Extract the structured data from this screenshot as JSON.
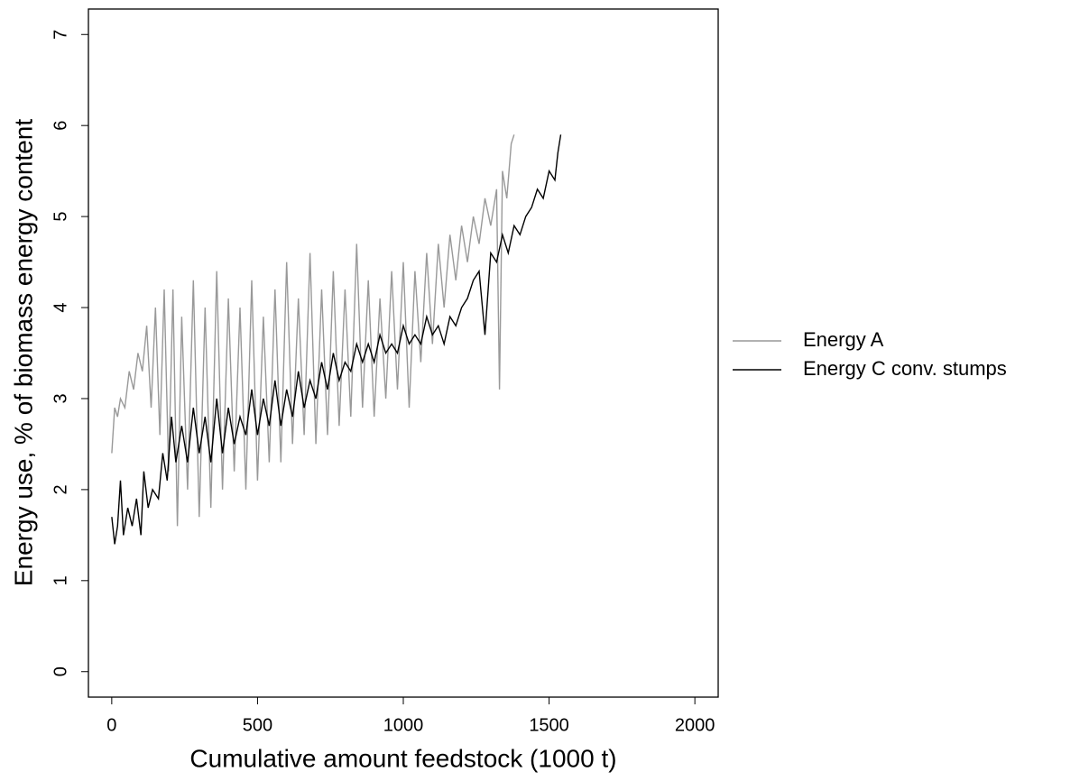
{
  "chart_data": {
    "type": "line",
    "x_label": "Cumulative amount feedstock (1000 t)",
    "y_label": "Energy use, % of biomass energy content",
    "xlim": [
      -80,
      2080
    ],
    "ylim": [
      -0.28,
      7.28
    ],
    "xticks": [
      0,
      500,
      1000,
      1500,
      2000
    ],
    "yticks": [
      0,
      1,
      2,
      3,
      4,
      5,
      6,
      7
    ],
    "legend": "right",
    "series": [
      {
        "name": "Energy A",
        "color": "#999999",
        "x": [
          0,
          10,
          20,
          30,
          45,
          60,
          75,
          90,
          105,
          120,
          135,
          150,
          165,
          180,
          195,
          210,
          225,
          240,
          260,
          280,
          300,
          320,
          340,
          360,
          380,
          400,
          420,
          440,
          460,
          480,
          500,
          520,
          540,
          560,
          580,
          600,
          620,
          640,
          660,
          680,
          700,
          720,
          740,
          760,
          780,
          800,
          820,
          840,
          860,
          880,
          900,
          920,
          940,
          960,
          980,
          1000,
          1020,
          1040,
          1060,
          1080,
          1100,
          1120,
          1140,
          1160,
          1180,
          1200,
          1220,
          1240,
          1260,
          1280,
          1300,
          1320,
          1330,
          1340,
          1355,
          1370,
          1380
        ],
        "values": [
          2.4,
          2.9,
          2.8,
          3.0,
          2.9,
          3.3,
          3.1,
          3.5,
          3.3,
          3.8,
          2.9,
          4.0,
          2.6,
          4.2,
          2.2,
          4.2,
          1.6,
          3.9,
          2.0,
          4.3,
          1.7,
          4.0,
          1.8,
          4.4,
          2.0,
          4.1,
          2.2,
          4.0,
          2.0,
          4.3,
          2.1,
          3.9,
          2.3,
          4.2,
          2.3,
          4.5,
          2.5,
          4.1,
          2.6,
          4.6,
          2.5,
          4.2,
          2.6,
          4.4,
          2.7,
          4.2,
          2.8,
          4.7,
          2.9,
          4.3,
          2.8,
          4.1,
          3.0,
          4.4,
          3.1,
          4.5,
          2.9,
          4.4,
          3.4,
          4.6,
          3.6,
          4.7,
          4.0,
          4.8,
          4.3,
          4.9,
          4.5,
          5.0,
          4.7,
          5.2,
          4.9,
          5.3,
          3.1,
          5.5,
          5.2,
          5.8,
          5.9
        ]
      },
      {
        "name": "Energy C conv. stumps",
        "color": "#000000",
        "x": [
          0,
          10,
          20,
          30,
          40,
          55,
          70,
          85,
          100,
          110,
          125,
          140,
          160,
          175,
          190,
          205,
          220,
          240,
          260,
          280,
          300,
          320,
          340,
          360,
          380,
          400,
          420,
          440,
          460,
          480,
          500,
          520,
          540,
          560,
          580,
          600,
          620,
          640,
          660,
          680,
          700,
          720,
          740,
          760,
          780,
          800,
          820,
          840,
          860,
          880,
          900,
          920,
          940,
          960,
          980,
          1000,
          1020,
          1040,
          1060,
          1080,
          1100,
          1120,
          1140,
          1160,
          1180,
          1200,
          1220,
          1240,
          1260,
          1280,
          1300,
          1320,
          1340,
          1360,
          1380,
          1400,
          1420,
          1440,
          1460,
          1480,
          1500,
          1520,
          1530,
          1540
        ],
        "values": [
          1.7,
          1.4,
          1.6,
          2.1,
          1.5,
          1.8,
          1.6,
          1.9,
          1.5,
          2.2,
          1.8,
          2.0,
          1.9,
          2.4,
          2.1,
          2.8,
          2.3,
          2.7,
          2.3,
          2.9,
          2.4,
          2.8,
          2.3,
          3.0,
          2.4,
          2.9,
          2.5,
          2.8,
          2.6,
          3.1,
          2.6,
          3.0,
          2.7,
          3.2,
          2.7,
          3.1,
          2.8,
          3.3,
          2.9,
          3.2,
          3.0,
          3.4,
          3.1,
          3.5,
          3.2,
          3.4,
          3.3,
          3.6,
          3.4,
          3.6,
          3.4,
          3.7,
          3.5,
          3.6,
          3.5,
          3.8,
          3.6,
          3.7,
          3.6,
          3.9,
          3.7,
          3.8,
          3.6,
          3.9,
          3.8,
          4.0,
          4.1,
          4.3,
          4.4,
          3.7,
          4.6,
          4.5,
          4.8,
          4.6,
          4.9,
          4.8,
          5.0,
          5.1,
          5.3,
          5.2,
          5.5,
          5.4,
          5.7,
          5.9
        ]
      }
    ]
  }
}
